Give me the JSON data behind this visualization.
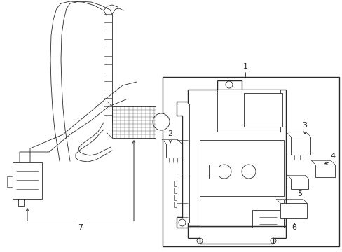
{
  "bg_color": "#ffffff",
  "line_color": "#2a2a2a",
  "line_width": 1.0,
  "thin_line": 0.6,
  "fig_width": 4.89,
  "fig_height": 3.6,
  "dpi": 100
}
